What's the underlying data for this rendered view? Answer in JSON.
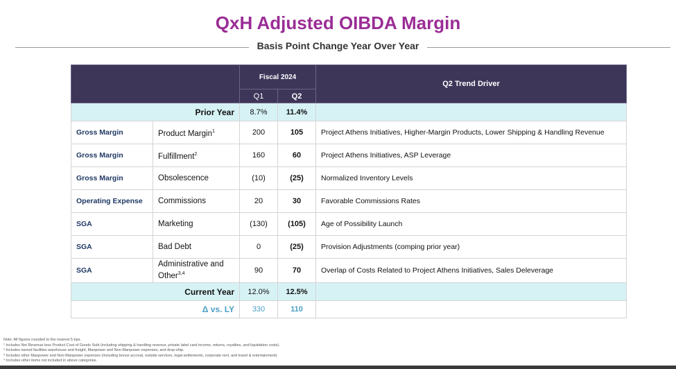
{
  "header": {
    "title": "QxH Adjusted OIBDA Margin",
    "subtitle": "Basis Point Change Year Over Year"
  },
  "table": {
    "fiscal_label": "Fiscal 2024",
    "columns": [
      "Q1",
      "Q2",
      "Q2 Trend Driver"
    ],
    "prior_year": {
      "label": "Prior Year",
      "q1": "8.7%",
      "q2": "11.4%"
    },
    "rows": [
      {
        "category": "Gross Margin",
        "item": "Product Margin",
        "sup": "1",
        "q1": "200",
        "q2": "105",
        "driver": "Project Athens Initiatives, Higher-Margin Products, Lower Shipping & Handling Revenue"
      },
      {
        "category": "Gross Margin",
        "item": "Fulfillment",
        "sup": "2",
        "q1": "160",
        "q2": "60",
        "driver": "Project Athens Initiatives, ASP Leverage"
      },
      {
        "category": "Gross Margin",
        "item": "Obsolescence",
        "q1": "(10)",
        "q2": "(25)",
        "driver": "Normalized Inventory Levels"
      },
      {
        "category": "Operating Expense",
        "item": "Commissions",
        "q1": "20",
        "q2": "30",
        "driver": "Favorable Commissions Rates"
      },
      {
        "category": "SGA",
        "item": "Marketing",
        "q1": "(130)",
        "q2": "(105)",
        "driver": "Age of Possibility Launch"
      },
      {
        "category": "SGA",
        "item": "Bad Debt",
        "q1": "0",
        "q2": "(25)",
        "driver": "Provision Adjustments (comping prior year)"
      },
      {
        "category": "SGA",
        "item": "Administrative and Other",
        "sup": "3,4",
        "q1": "90",
        "q2": "70",
        "driver": "Overlap of Costs Related to Project Athens Initiatives, Sales Deleverage"
      }
    ],
    "current_year": {
      "label": "Current Year",
      "q1": "12.0%",
      "q2": "12.5%"
    },
    "delta": {
      "label": "Δ vs. LY",
      "q1": "330",
      "q2": "110"
    }
  },
  "footnotes": [
    "Note: All figures rounded to the nearest 5 bps.",
    "¹ Includes Net Revenue less Product Cost of Goods Sold (including shipping & handling revenue, private label card income, returns, royalties, and liquidation costs).",
    "² Includes owned facilities warehouse and freight, Manpower and Non-Manpower expenses, and drop-ship.",
    "³ Includes other Manpower and Non-Manpower expenses (including bonus accrual, outside services, legal settlements, corporate rent, and travel & entertainment).",
    "⁴ Includes other items not included in above categories."
  ]
}
